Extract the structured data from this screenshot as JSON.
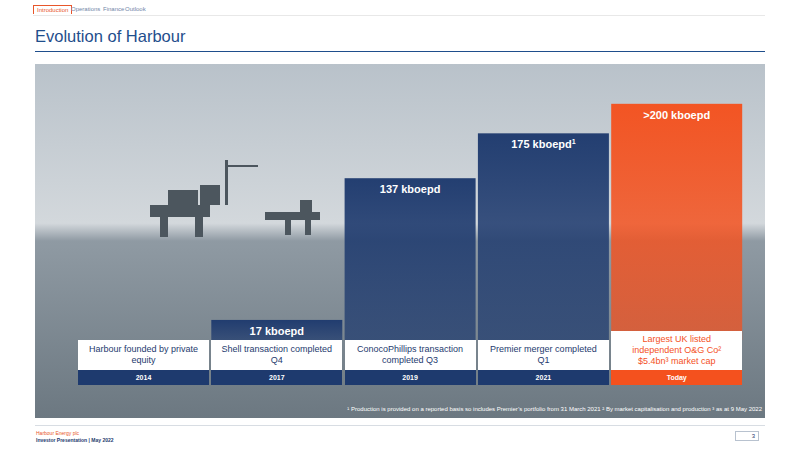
{
  "nav": [
    "Introduction",
    "Operations",
    "Finance",
    "Outlook"
  ],
  "title": "Evolution of Harbour",
  "chart_data": {
    "type": "bar",
    "categories": [
      "2014",
      "2017",
      "2019",
      "2021",
      "Today"
    ],
    "values": [
      null,
      17,
      137,
      175,
      200
    ],
    "value_labels": [
      null,
      "17 kboepd",
      "137 kboepd",
      "175 kboepd",
      ">200 kboepd"
    ],
    "value_label_notes": [
      null,
      null,
      null,
      "1",
      null
    ],
    "annotations": [
      "Harbour founded by private equity",
      "Shell transaction completed Q4",
      "ConocoPhillips transaction completed Q3",
      "Premier merger completed Q1",
      "Largest UK listed independent O&G Co² $5.4bn³ market cap"
    ],
    "colors": [
      "#1e3a6e",
      "#1e3a6e",
      "#1e3a6e",
      "#1e3a6e",
      "#f4511e"
    ],
    "ylim": [
      0,
      210
    ],
    "data_labels": true,
    "tick_labels": false
  },
  "footnote": "¹ Production is provided on a reported basis so includes Premier’s portfolio from 31 March 2021 ² By market capitalisation and production ³ as at 9 May 2022",
  "footer": {
    "company": "Harbour Energy plc",
    "subtitle": "Investor Presentation | May 2022",
    "page": 3
  }
}
